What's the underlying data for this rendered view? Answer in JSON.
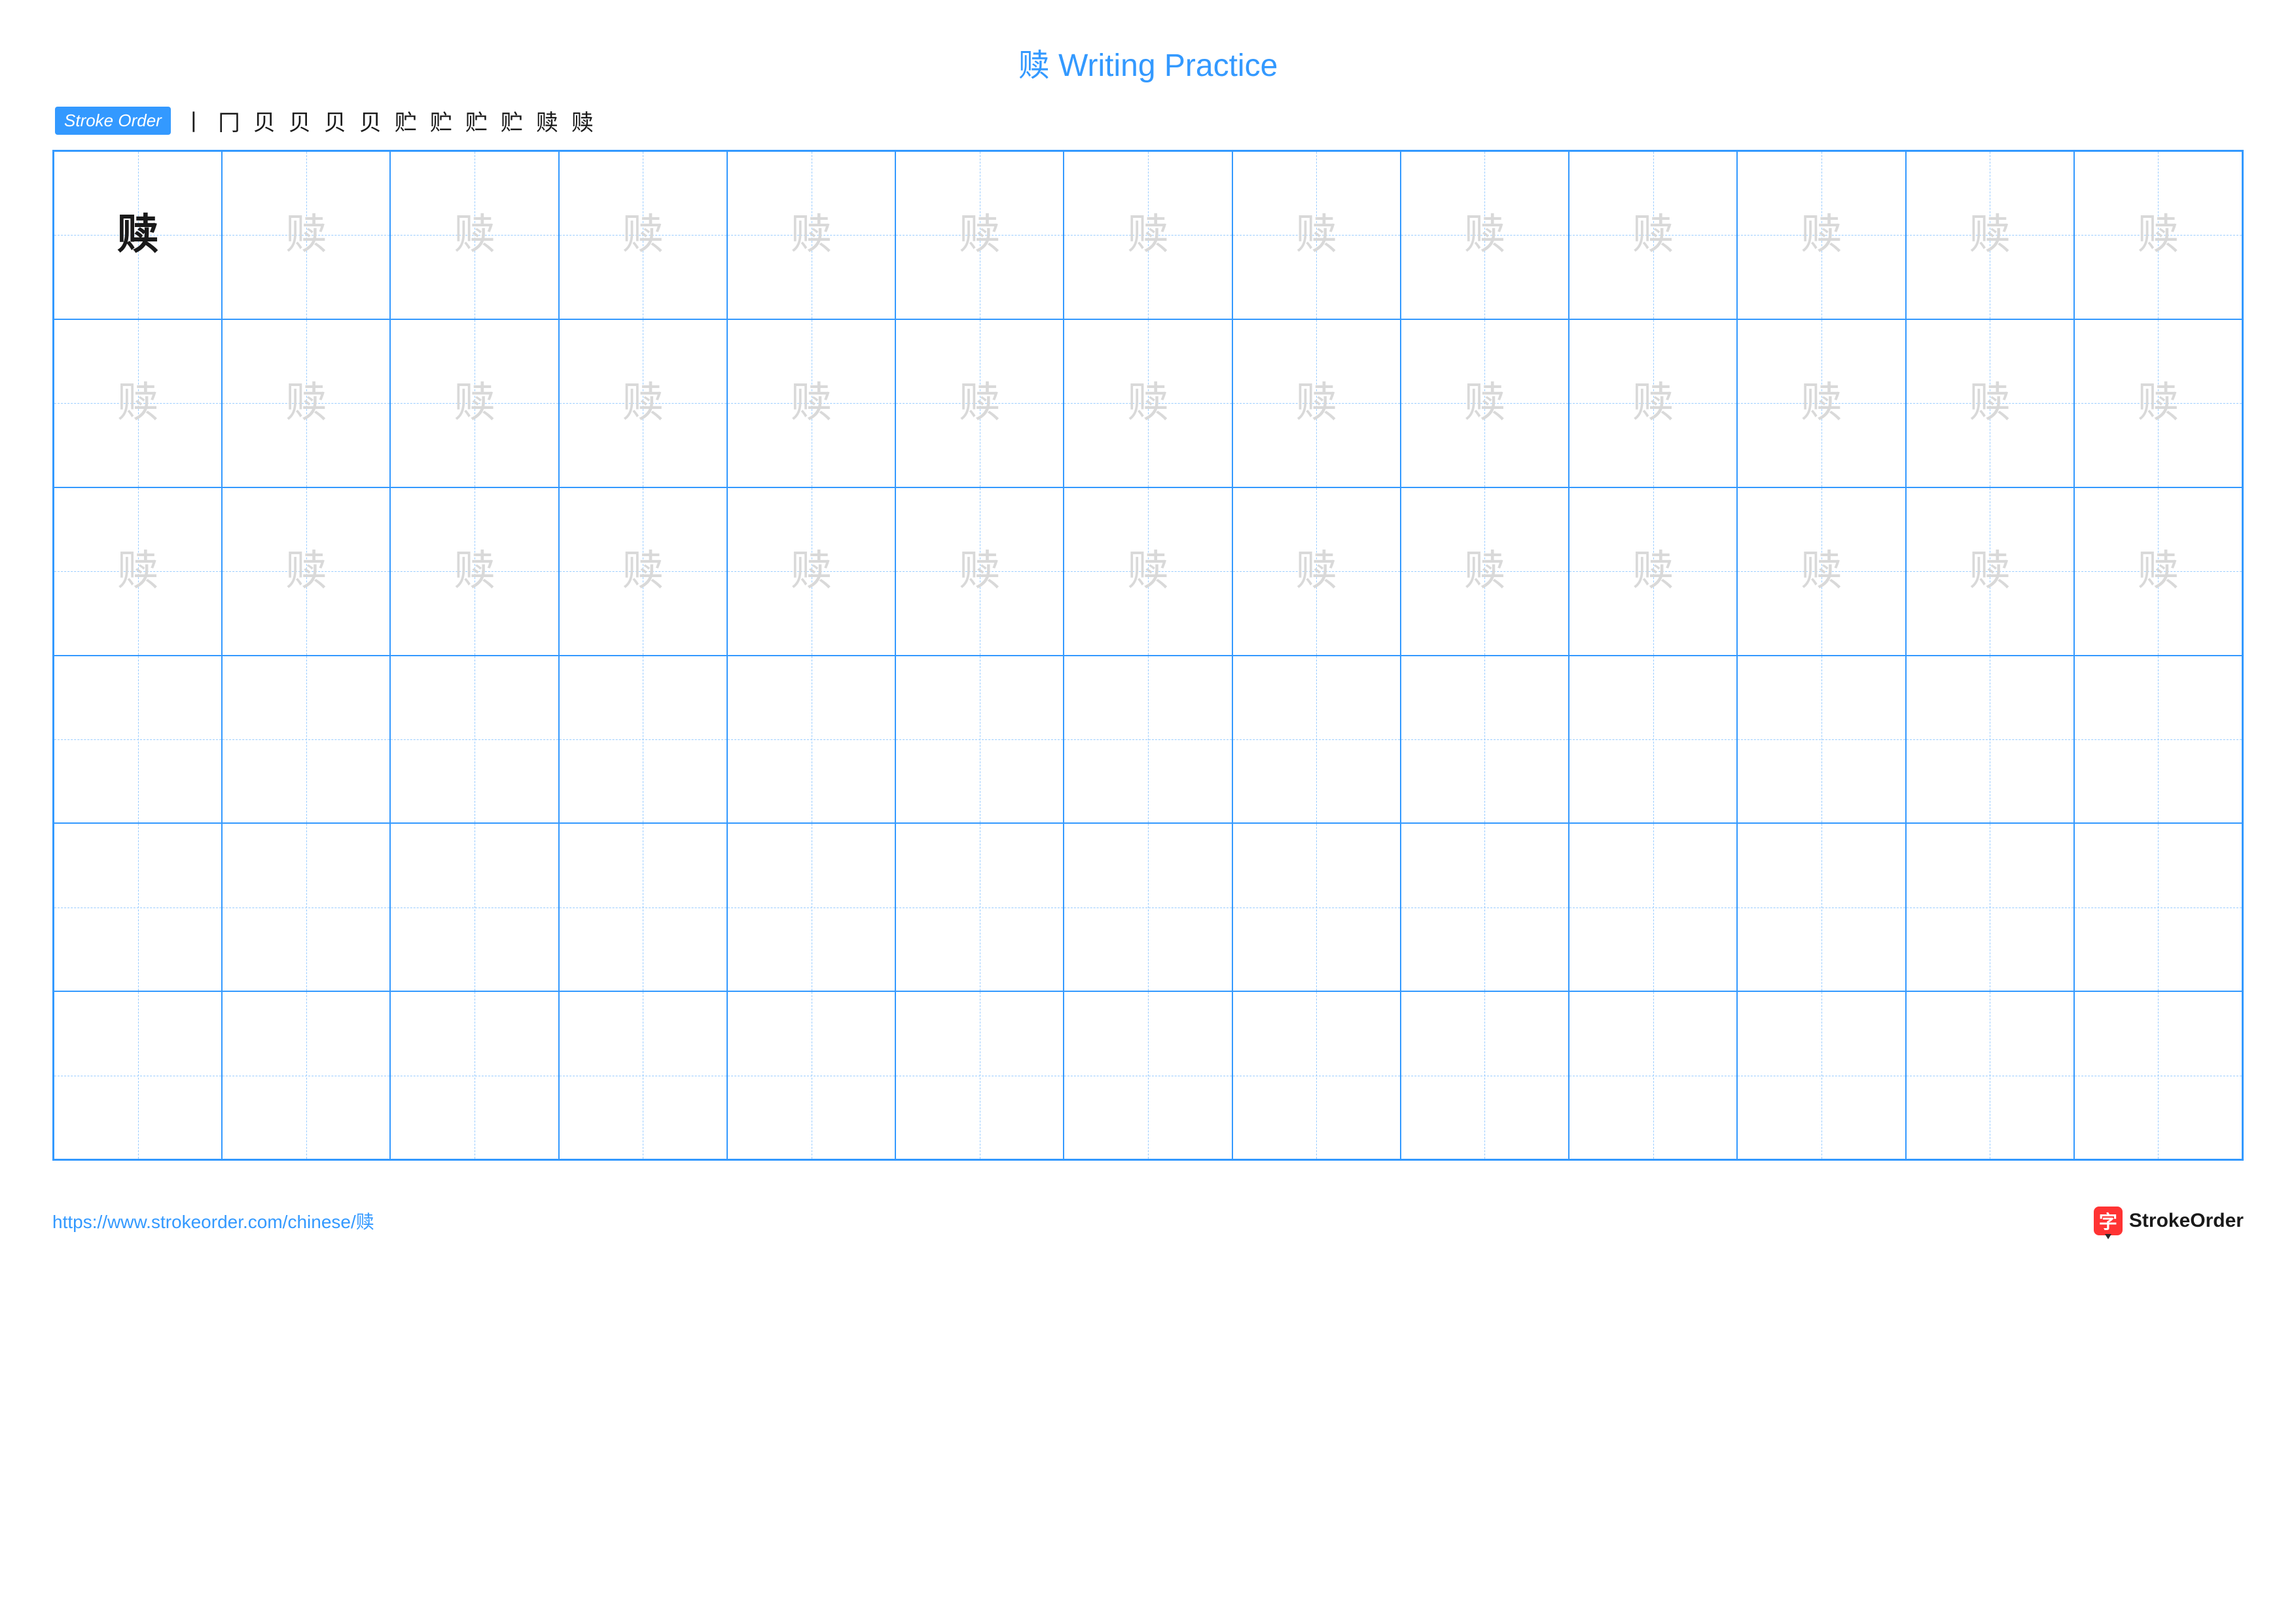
{
  "title": {
    "character": "赎",
    "text": "Writing Practice"
  },
  "stroke_order": {
    "label": "Stroke Order",
    "steps": [
      "丨",
      "冂",
      "贝",
      "贝",
      "贝",
      "贝",
      "贮",
      "贮",
      "贮",
      "贮",
      "赎",
      "赎"
    ]
  },
  "grid": {
    "rows": 6,
    "cols": 13,
    "character": "赎",
    "bold_cells": [
      [
        0,
        0
      ]
    ],
    "trace_rows": [
      0,
      1,
      2
    ]
  },
  "footer": {
    "url": "https://www.strokeorder.com/chinese/赎",
    "brand_icon": "字",
    "brand_text": "StrokeOrder"
  },
  "colors": {
    "primary": "#3399ff",
    "grid_guide": "#99ccff",
    "trace": "#d9d9d9",
    "bold": "#1a1a1a",
    "brand_red": "#ff3333"
  }
}
